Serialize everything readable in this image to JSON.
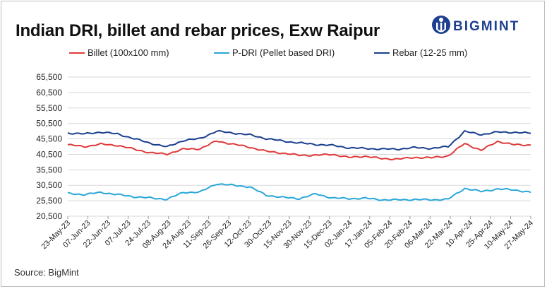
{
  "title": "Indian DRI, billet and rebar prices, Exw Raipur",
  "brand": {
    "name": "BIGMINT",
    "icon": "bigmint-logo-icon",
    "color": "#1d3f8f"
  },
  "source": "Source: BigMint",
  "chart_data": {
    "type": "line",
    "title": "Indian DRI, billet and rebar prices, Exw Raipur",
    "xlabel": "",
    "ylabel": "",
    "ylim": [
      20500,
      65500
    ],
    "yticks": [
      "65,500",
      "60,500",
      "55,500",
      "50,500",
      "45,500",
      "40,500",
      "35,500",
      "30,500",
      "25,500",
      "20,500"
    ],
    "grid": true,
    "legend_position": "top",
    "x_tick_labels": [
      "23-May-23",
      "07-Jun-23",
      "22-Jun-23",
      "07-Jul-23",
      "24-Jul-23",
      "08-Aug-23",
      "24-Aug-23",
      "11-Sep-23",
      "26-Sep-23",
      "12-Oct-23",
      "30-Oct-23",
      "15-Nov-23",
      "30-Nov-23",
      "15-Dec-23",
      "02-Jan-24",
      "17-Jan-24",
      "05-Feb-24",
      "20-Feb-24",
      "06-Mar-24",
      "22-Mar-24",
      "10-Apr-24",
      "25-Apr-24",
      "10-May-24",
      "27-May-24"
    ],
    "series": [
      {
        "name": "Billet (100x100 mm)",
        "color": "#e03a3a",
        "values": [
          43600,
          43000,
          43800,
          43400,
          42200,
          41000,
          40600,
          42200,
          42300,
          44800,
          43800,
          42800,
          41500,
          40900,
          40200,
          40200,
          40500,
          39500,
          39900,
          39100,
          39000,
          39500,
          39400,
          40000,
          44000,
          41800,
          44700,
          43600,
          43500
        ]
      },
      {
        "name": "P-DRI (Pellet based DRI)",
        "color": "#29a8d8",
        "values": [
          27900,
          27500,
          28200,
          27500,
          26800,
          26400,
          26000,
          28200,
          28300,
          31000,
          30500,
          30000,
          27300,
          26600,
          26200,
          27700,
          26400,
          26200,
          26300,
          25800,
          25800,
          25900,
          25800,
          26000,
          29500,
          28500,
          29300,
          29000,
          28200
        ]
      },
      {
        "name": "Rebar (12-25 mm)",
        "color": "#1b3f8f",
        "values": [
          47400,
          47100,
          47700,
          47100,
          45600,
          44100,
          42900,
          45000,
          45600,
          48000,
          47400,
          46800,
          45600,
          44800,
          44200,
          43700,
          43400,
          42600,
          42400,
          42200,
          42200,
          42700,
          42400,
          43000,
          47900,
          46900,
          47700,
          47600,
          47300
        ]
      }
    ]
  }
}
